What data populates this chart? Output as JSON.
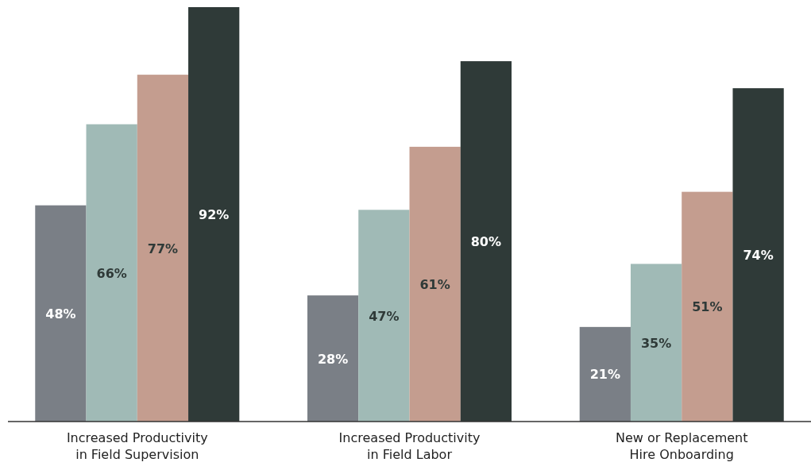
{
  "chart_data": {
    "type": "bar",
    "categories": [
      "Increased Productivity in Field Supervision",
      "Increased Productivity in Field Labor",
      "New or Replacement Hire Onboarding"
    ],
    "series": [
      {
        "color": "#7a7f86",
        "values": [
          48,
          28,
          21
        ],
        "value_labels": [
          "48%",
          "28%",
          "21%"
        ]
      },
      {
        "color": "#a0bab6",
        "values": [
          66,
          47,
          35
        ],
        "value_labels": [
          "66%",
          "47%",
          "35%"
        ]
      },
      {
        "color": "#c49d8f",
        "values": [
          77,
          61,
          51
        ],
        "value_labels": [
          "77%",
          "61%",
          "51%"
        ]
      },
      {
        "color": "#2f3a38",
        "values": [
          92,
          80,
          74
        ],
        "value_labels": [
          "92%",
          "80%",
          "74%"
        ]
      }
    ],
    "grid": false
  }
}
